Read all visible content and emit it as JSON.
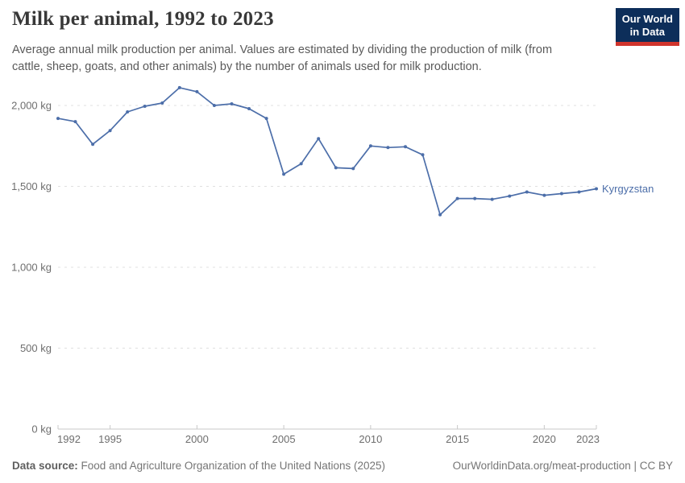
{
  "header": {
    "title": "Milk per animal, 1992 to 2023",
    "subtitle": "Average annual milk production per animal. Values are estimated by dividing the production of milk (from cattle, sheep, goats, and other animals) by the number of animals used for milk production.",
    "logo": {
      "line1": "Our World",
      "line2": "in Data",
      "bg_color": "#0d2e5a",
      "accent_color": "#d0342c"
    }
  },
  "chart_data": {
    "type": "line",
    "title": "Milk per animal, 1992 to 2023",
    "unit": "kg",
    "x": [
      1992,
      1993,
      1994,
      1995,
      1996,
      1997,
      1998,
      1999,
      2000,
      2001,
      2002,
      2003,
      2004,
      2005,
      2006,
      2007,
      2008,
      2009,
      2010,
      2011,
      2012,
      2013,
      2014,
      2015,
      2016,
      2017,
      2018,
      2019,
      2020,
      2021,
      2022,
      2023
    ],
    "series": [
      {
        "name": "Kyrgyzstan",
        "color": "#4c6ea9",
        "values": [
          1920,
          1900,
          1760,
          1845,
          1960,
          1995,
          2015,
          2110,
          2085,
          2000,
          2010,
          1980,
          1920,
          1575,
          1640,
          1795,
          1615,
          1610,
          1750,
          1740,
          1745,
          1695,
          1325,
          1425,
          1425,
          1420,
          1440,
          1465,
          1445,
          1455,
          1465,
          1485
        ]
      }
    ],
    "xlim": [
      1992,
      2023
    ],
    "ylim": [
      0,
      2200
    ],
    "xticks": [
      1992,
      1995,
      2000,
      2005,
      2010,
      2015,
      2020,
      2023
    ],
    "yticks": [
      0,
      500,
      1000,
      1500,
      2000
    ],
    "ytick_labels": [
      "0 kg",
      "500 kg",
      "1,000 kg",
      "1,500 kg",
      "2,000 kg"
    ],
    "grid": "horizontal-dashed",
    "legend_position": "end-of-line-label",
    "grid_color": "#e0e0e0",
    "axis_color": "#c8c8c8"
  },
  "footer": {
    "source_label": "Data source:",
    "source_text": "Food and Agriculture Organization of the United Nations (2025)",
    "citation": "OurWorldinData.org/meat-production | CC BY"
  }
}
